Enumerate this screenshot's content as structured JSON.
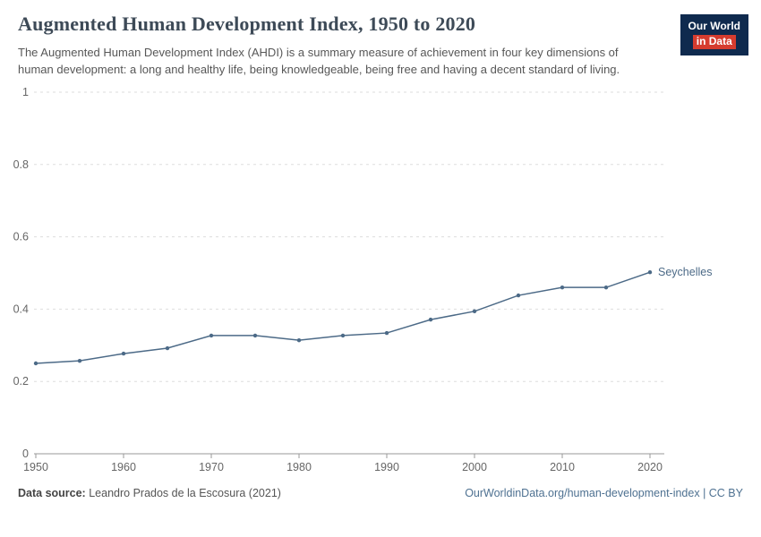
{
  "header": {
    "title": "Augmented Human Development Index, 1950 to 2020",
    "subtitle": "The Augmented Human Development Index (AHDI) is a summary measure of achievement in four key dimensions of human development: a long and healthy life, being knowledgeable, being free and having a decent standard of living.",
    "logo": {
      "line1": "Our World",
      "line2": "in Data"
    }
  },
  "chart_data": {
    "type": "line",
    "title": "Augmented Human Development Index, 1950 to 2020",
    "xlabel": "",
    "ylabel": "",
    "x": [
      1950,
      1955,
      1960,
      1965,
      1970,
      1975,
      1980,
      1985,
      1990,
      1995,
      2000,
      2005,
      2010,
      2015,
      2020
    ],
    "series": [
      {
        "name": "Seychelles",
        "color": "#4c6a87",
        "values": [
          0.25,
          0.257,
          0.277,
          0.292,
          0.327,
          0.327,
          0.314,
          0.327,
          0.334,
          0.371,
          0.394,
          0.438,
          0.46,
          0.46,
          0.502
        ]
      }
    ],
    "ylim": [
      0,
      1
    ],
    "x_range": [
      1950,
      2020
    ],
    "y_ticks": [
      0,
      0.2,
      0.4,
      0.6,
      0.8,
      1
    ],
    "x_ticks": [
      1950,
      1960,
      1970,
      1980,
      1990,
      2000,
      2010,
      2020
    ],
    "grid": "horizontal-dashed",
    "legend_position": "end-of-line-label"
  },
  "footer": {
    "source_label": "Data source:",
    "source_text": "Leandro Prados de la Escosura (2021)",
    "link_text": "OurWorldinData.org/human-development-index | CC BY"
  },
  "colors": {
    "line": "#4c6a87",
    "logo_background": "#0f2a4e",
    "logo_accent": "#d63c2f",
    "gridline": "#dddddd",
    "axis": "#999999",
    "tick_label": "#666666"
  }
}
